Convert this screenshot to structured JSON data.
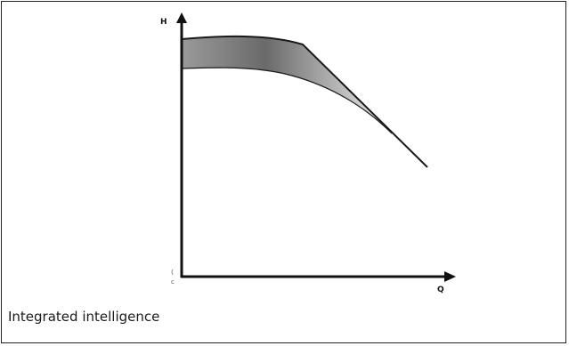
{
  "figure": {
    "caption": "Integrated intelligence",
    "y_axis_label": "H",
    "x_axis_label": "Q",
    "origin_label": "c",
    "colors": {
      "frame": "#222222",
      "axis": "#111111",
      "band_dark": "#6a6a6a",
      "band_mid": "#9a9a9a",
      "band_light": "#e6e6e6",
      "curve": "#1a1a1a"
    }
  }
}
